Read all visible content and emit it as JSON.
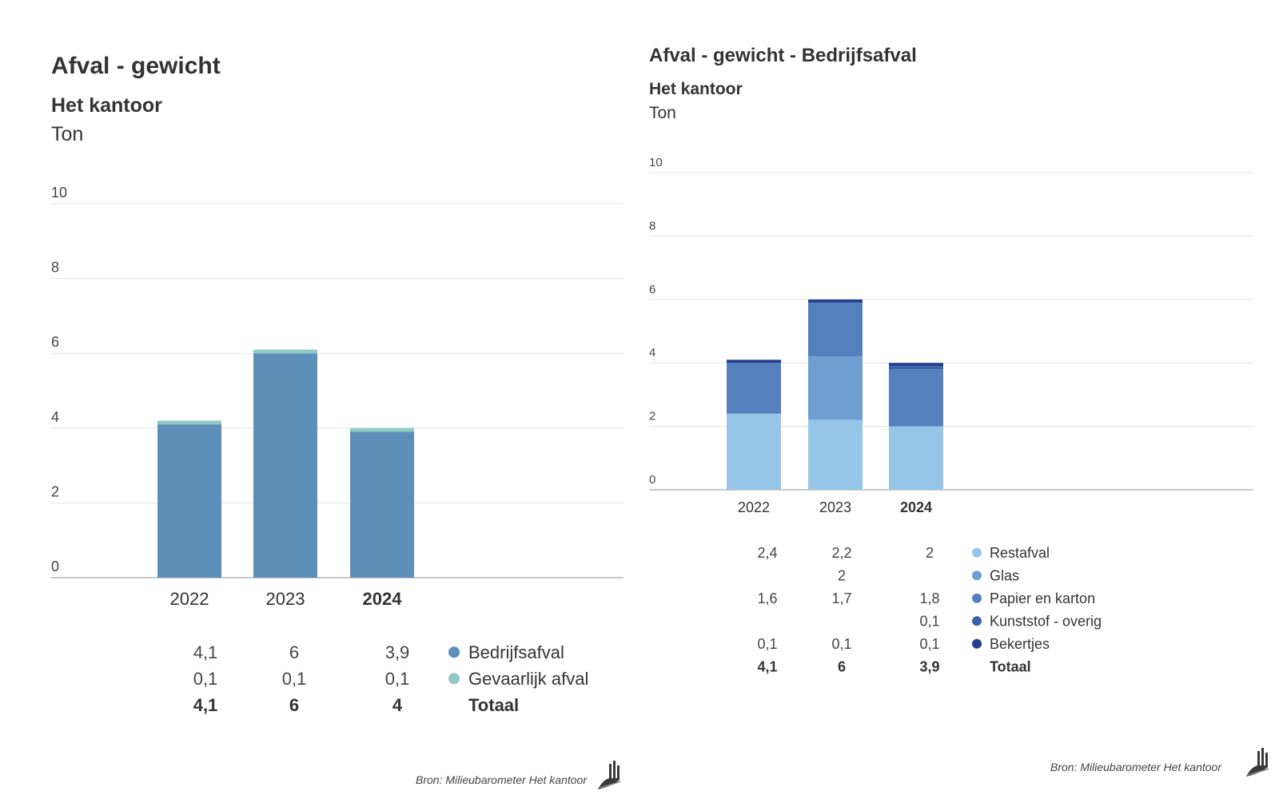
{
  "left": {
    "title": "Afval - gewicht",
    "subtitle": "Het kantoor",
    "unit": "Ton",
    "source": "Bron: Milieubarometer Het kantoor",
    "total_label": "Totaal"
  },
  "right": {
    "title": "Afval - gewicht - Bedrijfsafval",
    "subtitle": "Het kantoor",
    "unit": "Ton",
    "source": "Bron: Milieubarometer Het kantoor",
    "total_label": "Totaal"
  },
  "chart_data": [
    {
      "type": "bar",
      "stacked": true,
      "title": "Afval - gewicht",
      "subtitle": "Het kantoor",
      "ylabel": "Ton",
      "ylim": [
        0,
        10
      ],
      "yticks": [
        "0",
        "2",
        "4",
        "6",
        "8",
        "10"
      ],
      "grid": true,
      "categories": [
        "2022",
        "2023",
        "2024"
      ],
      "highlight_category": "2024",
      "series": [
        {
          "name": "Bedrijfsafval",
          "color": "#5e8fb8",
          "values": [
            4.1,
            6,
            3.9
          ],
          "labels": [
            "4,1",
            "6",
            "3,9"
          ]
        },
        {
          "name": "Gevaarlijk afval",
          "color": "#8fc9c2",
          "values": [
            0.1,
            0.1,
            0.1
          ],
          "labels": [
            "0,1",
            "0,1",
            "0,1"
          ]
        }
      ],
      "totals": {
        "values": [
          4.1,
          6,
          4
        ],
        "labels": [
          "4,1",
          "6",
          "4"
        ]
      },
      "legend_position": "right of value table"
    },
    {
      "type": "bar",
      "stacked": true,
      "title": "Afval - gewicht - Bedrijfsafval",
      "subtitle": "Het kantoor",
      "ylabel": "Ton",
      "ylim": [
        0,
        10
      ],
      "yticks": [
        "0",
        "2",
        "4",
        "6",
        "8",
        "10"
      ],
      "grid": true,
      "categories": [
        "2022",
        "2023",
        "2024"
      ],
      "highlight_category": "2024",
      "series": [
        {
          "name": "Restafval",
          "color": "#97c5e8",
          "values": [
            2.4,
            2.2,
            2
          ],
          "labels": [
            "2,4",
            "2,2",
            "2"
          ]
        },
        {
          "name": "Glas",
          "color": "#6f9fd1",
          "values": [
            0,
            2,
            0
          ],
          "labels": [
            "",
            "2",
            ""
          ]
        },
        {
          "name": "Papier en karton",
          "color": "#5580bd",
          "values": [
            1.6,
            1.7,
            1.8
          ],
          "labels": [
            "1,6",
            "1,7",
            "1,8"
          ]
        },
        {
          "name": "Kunststof - overig",
          "color": "#3a63ae",
          "values": [
            0,
            0,
            0.1
          ],
          "labels": [
            "",
            "",
            "0,1"
          ]
        },
        {
          "name": "Bekertjes",
          "color": "#263f8c",
          "values": [
            0.1,
            0.1,
            0.1
          ],
          "labels": [
            "0,1",
            "0,1",
            "0,1"
          ]
        }
      ],
      "totals": {
        "values": [
          4.1,
          6,
          3.9
        ],
        "labels": [
          "4,1",
          "6",
          "3,9"
        ]
      },
      "legend_position": "right of value table"
    }
  ]
}
